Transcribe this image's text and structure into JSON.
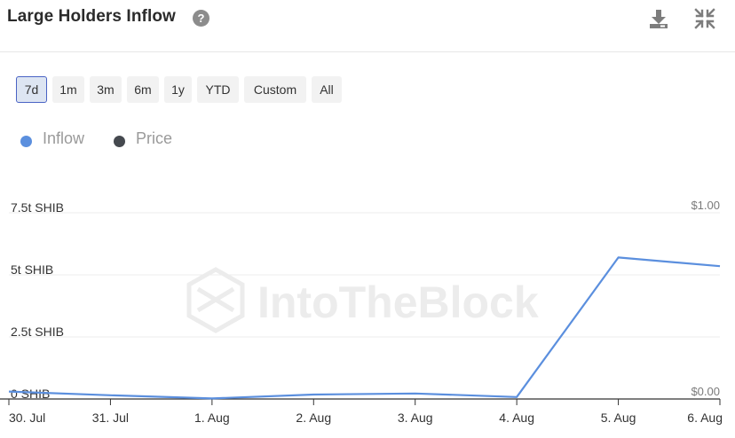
{
  "header": {
    "title": "Large Holders Inflow",
    "help_icon": "?"
  },
  "icons": {
    "help": "help-icon",
    "download": "download-icon",
    "collapse": "collapse-icon"
  },
  "ranges": {
    "items": [
      "7d",
      "1m",
      "3m",
      "6m",
      "1y",
      "YTD",
      "Custom",
      "All"
    ],
    "selected": "7d"
  },
  "legend": {
    "items": [
      {
        "label": "Inflow",
        "color": "#5b8fde"
      },
      {
        "label": "Price",
        "color": "#45494f"
      }
    ]
  },
  "watermark": "IntoTheBlock",
  "chart_data": {
    "type": "line",
    "title": "",
    "x": [
      "30. Jul",
      "31. Jul",
      "1. Aug",
      "2. Aug",
      "3. Aug",
      "4. Aug",
      "5. Aug",
      "6. Aug"
    ],
    "series": [
      {
        "name": "Inflow",
        "color": "#5b8fde",
        "unit": "t SHIB",
        "values": [
          0.3,
          0.15,
          0.02,
          0.18,
          0.22,
          0.08,
          5.7,
          5.35
        ]
      }
    ],
    "y_left": {
      "ticks": [
        0,
        2.5,
        5,
        7.5
      ],
      "tick_labels": [
        "0 SHIB",
        "2.5t SHIB",
        "5t SHIB",
        "7.5t SHIB"
      ],
      "range": [
        0,
        7.5
      ]
    },
    "y_right": {
      "ticks": [
        0,
        1
      ],
      "tick_labels": [
        "$0.00",
        "$1.00"
      ],
      "range": [
        0,
        1
      ]
    },
    "grid": true
  }
}
